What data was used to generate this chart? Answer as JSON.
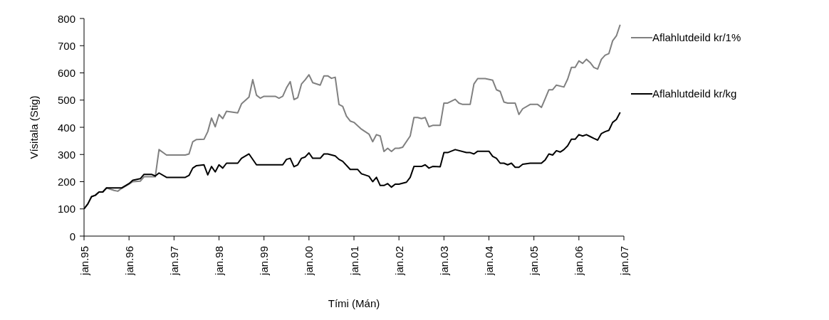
{
  "chart_data": {
    "type": "line",
    "xlabel": "Tími (Mán)",
    "ylabel": "Vísitala (Stig)",
    "xlim": [
      "1995-01",
      "2007-01"
    ],
    "xticks": [
      {
        "value": "1995-01",
        "label": "jan.95"
      },
      {
        "value": "1996-01",
        "label": "jan.96"
      },
      {
        "value": "1997-01",
        "label": "jan.97"
      },
      {
        "value": "1998-01",
        "label": "jan.98"
      },
      {
        "value": "1999-01",
        "label": "jan.99"
      },
      {
        "value": "2000-01",
        "label": "jan.00"
      },
      {
        "value": "2001-01",
        "label": "jan.01"
      },
      {
        "value": "2002-01",
        "label": "jan.02"
      },
      {
        "value": "2003-01",
        "label": "jan.03"
      },
      {
        "value": "2004-01",
        "label": "jan.04"
      },
      {
        "value": "2005-01",
        "label": "jan.05"
      },
      {
        "value": "2006-01",
        "label": "jan.06"
      },
      {
        "value": "2007-01",
        "label": "jan.07"
      }
    ],
    "ylim": [
      0,
      800
    ],
    "yticks": [
      0,
      100,
      200,
      300,
      400,
      500,
      600,
      700,
      800
    ],
    "grid": false,
    "legend": "right",
    "marker": "none",
    "line_style": "solid",
    "series": [
      {
        "name": "Aflahlutdeild kr/1%",
        "color": "#808080",
        "x": [
          "1995-01",
          "1995-02",
          "1995-03",
          "1995-04",
          "1995-05",
          "1995-06",
          "1995-07",
          "1995-09",
          "1995-10",
          "1995-11",
          "1996-01",
          "1996-02",
          "1996-04",
          "1996-05",
          "1996-08",
          "1996-09",
          "1996-11",
          "1997-04",
          "1997-05",
          "1997-06",
          "1997-07",
          "1997-09",
          "1997-10",
          "1997-11",
          "1997-12",
          "1998-01",
          "1998-02",
          "1998-03",
          "1998-05",
          "1998-06",
          "1998-07",
          "1998-09",
          "1998-10",
          "1998-11",
          "1998-12",
          "1999-01",
          "1999-04",
          "1999-05",
          "1999-06",
          "1999-07",
          "1999-08",
          "1999-09",
          "1999-10",
          "1999-11",
          "1999-12",
          "2000-01",
          "2000-02",
          "2000-04",
          "2000-05",
          "2000-06",
          "2000-07",
          "2000-08",
          "2000-09",
          "2000-10",
          "2000-11",
          "2000-12",
          "2001-01",
          "2001-03",
          "2001-04",
          "2001-05",
          "2001-06",
          "2001-07",
          "2001-08",
          "2001-09",
          "2001-10",
          "2001-11",
          "2001-12",
          "2002-01",
          "2002-02",
          "2002-04",
          "2002-05",
          "2002-06",
          "2002-07",
          "2002-08",
          "2002-09",
          "2002-10",
          "2002-12",
          "2003-01",
          "2003-02",
          "2003-04",
          "2003-05",
          "2003-06",
          "2003-08",
          "2003-09",
          "2003-10",
          "2003-12",
          "2004-02",
          "2004-03",
          "2004-04",
          "2004-05",
          "2004-06",
          "2004-08",
          "2004-09",
          "2004-10",
          "2004-12",
          "2005-02",
          "2005-03",
          "2005-04",
          "2005-05",
          "2005-06",
          "2005-07",
          "2005-09",
          "2005-10",
          "2005-11",
          "2005-12",
          "2006-01",
          "2006-02",
          "2006-03",
          "2006-04",
          "2006-05",
          "2006-06",
          "2006-07",
          "2006-08",
          "2006-09",
          "2006-10",
          "2006-11",
          "2006-12"
        ],
        "values": [
          100,
          118,
          145,
          150,
          162,
          162,
          177,
          168,
          165,
          175,
          191,
          200,
          202,
          218,
          218,
          318,
          298,
          298,
          302,
          347,
          355,
          356,
          384,
          434,
          402,
          447,
          432,
          459,
          455,
          453,
          486,
          511,
          575,
          518,
          507,
          514,
          514,
          507,
          514,
          545,
          568,
          502,
          509,
          559,
          575,
          593,
          564,
          555,
          589,
          589,
          580,
          584,
          484,
          477,
          441,
          423,
          418,
          393,
          384,
          375,
          347,
          373,
          368,
          311,
          323,
          311,
          323,
          323,
          327,
          368,
          436,
          436,
          432,
          436,
          402,
          407,
          407,
          489,
          489,
          503,
          489,
          484,
          484,
          559,
          579,
          579,
          573,
          538,
          532,
          493,
          489,
          489,
          447,
          468,
          484,
          484,
          473,
          505,
          538,
          538,
          555,
          548,
          577,
          620,
          620,
          644,
          635,
          650,
          638,
          620,
          614,
          650,
          665,
          671,
          718,
          736,
          777
        ]
      },
      {
        "name": "Aflahlutdeild kr/kg",
        "color": "#000000",
        "x": [
          "1995-01",
          "1995-02",
          "1995-03",
          "1995-04",
          "1995-05",
          "1995-06",
          "1995-07",
          "1995-11",
          "1996-01",
          "1996-02",
          "1996-04",
          "1996-05",
          "1996-07",
          "1996-08",
          "1996-09",
          "1996-11",
          "1997-04",
          "1997-05",
          "1997-06",
          "1997-07",
          "1997-09",
          "1997-10",
          "1997-11",
          "1997-12",
          "1998-01",
          "1998-02",
          "1998-03",
          "1998-06",
          "1998-07",
          "1998-09",
          "1998-11",
          "1999-06",
          "1999-07",
          "1999-08",
          "1999-09",
          "1999-10",
          "1999-11",
          "1999-12",
          "2000-01",
          "2000-02",
          "2000-04",
          "2000-05",
          "2000-06",
          "2000-08",
          "2000-09",
          "2000-10",
          "2000-12",
          "2001-02",
          "2001-03",
          "2001-05",
          "2001-06",
          "2001-07",
          "2001-08",
          "2001-09",
          "2001-10",
          "2001-11",
          "2001-12",
          "2002-01",
          "2002-03",
          "2002-04",
          "2002-05",
          "2002-07",
          "2002-08",
          "2002-09",
          "2002-10",
          "2002-12",
          "2003-01",
          "2003-02",
          "2003-04",
          "2003-07",
          "2003-08",
          "2003-09",
          "2003-10",
          "2004-01",
          "2004-02",
          "2004-03",
          "2004-04",
          "2004-05",
          "2004-06",
          "2004-07",
          "2004-08",
          "2004-09",
          "2004-10",
          "2004-12",
          "2005-03",
          "2005-04",
          "2005-05",
          "2005-06",
          "2005-07",
          "2005-08",
          "2005-09",
          "2005-10",
          "2005-11",
          "2005-12",
          "2006-01",
          "2006-02",
          "2006-03",
          "2006-04",
          "2006-05",
          "2006-06",
          "2006-07",
          "2006-08",
          "2006-09",
          "2006-10",
          "2006-11",
          "2006-12"
        ],
        "values": [
          100,
          118,
          145,
          150,
          162,
          162,
          177,
          177,
          193,
          205,
          211,
          227,
          227,
          221,
          232,
          216,
          216,
          223,
          250,
          259,
          262,
          225,
          256,
          236,
          262,
          250,
          268,
          268,
          286,
          302,
          262,
          262,
          282,
          286,
          255,
          262,
          286,
          291,
          306,
          286,
          286,
          302,
          302,
          295,
          282,
          275,
          245,
          245,
          229,
          220,
          200,
          216,
          186,
          186,
          193,
          180,
          191,
          191,
          198,
          216,
          256,
          256,
          262,
          250,
          256,
          255,
          307,
          307,
          318,
          307,
          307,
          302,
          312,
          312,
          293,
          286,
          268,
          268,
          262,
          268,
          253,
          253,
          264,
          268,
          268,
          280,
          302,
          298,
          314,
          309,
          318,
          332,
          356,
          356,
          373,
          368,
          373,
          366,
          359,
          353,
          377,
          384,
          389,
          418,
          429,
          455
        ]
      }
    ]
  }
}
